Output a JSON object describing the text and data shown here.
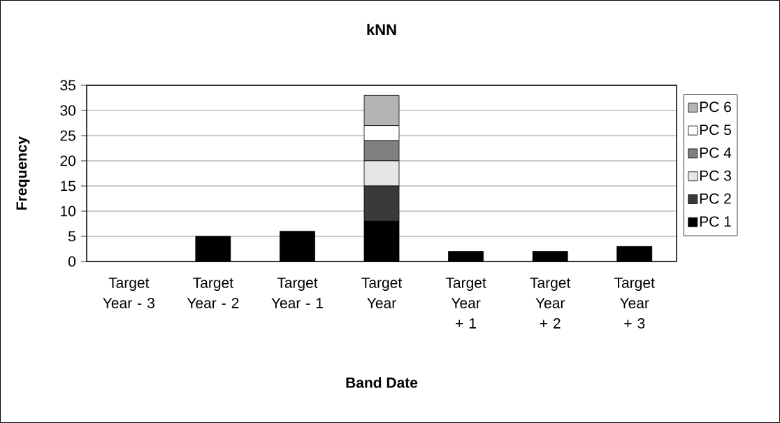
{
  "chart_data": {
    "type": "bar",
    "title": "kNN",
    "xlabel": "Band Date",
    "ylabel": "Frequency",
    "categories": [
      "Target Year - 3",
      "Target Year - 2",
      "Target Year - 1",
      "Target Year",
      "Target Year + 1",
      "Target Year + 2",
      "Target Year + 3"
    ],
    "stacked": true,
    "series": [
      {
        "name": "PC 1",
        "color": "#000000",
        "values": [
          0,
          5,
          6,
          8,
          2,
          2,
          3
        ]
      },
      {
        "name": "PC 2",
        "color": "#3a3a3a",
        "values": [
          0,
          0,
          0,
          7,
          0,
          0,
          0
        ]
      },
      {
        "name": "PC 3",
        "color": "#e6e6e6",
        "values": [
          0,
          0,
          0,
          5,
          0,
          0,
          0
        ]
      },
      {
        "name": "PC 4",
        "color": "#808080",
        "values": [
          0,
          0,
          0,
          4,
          0,
          0,
          0
        ]
      },
      {
        "name": "PC 5",
        "color": "#ffffff",
        "values": [
          0,
          0,
          0,
          3,
          0,
          0,
          0
        ]
      },
      {
        "name": "PC 6",
        "color": "#b4b4b4",
        "values": [
          0,
          0,
          0,
          6,
          0,
          0,
          0
        ]
      }
    ],
    "ylim": [
      0,
      35
    ],
    "yticks": [
      0,
      5,
      10,
      15,
      20,
      25,
      30,
      35
    ],
    "grid": "y",
    "legend": "right"
  }
}
